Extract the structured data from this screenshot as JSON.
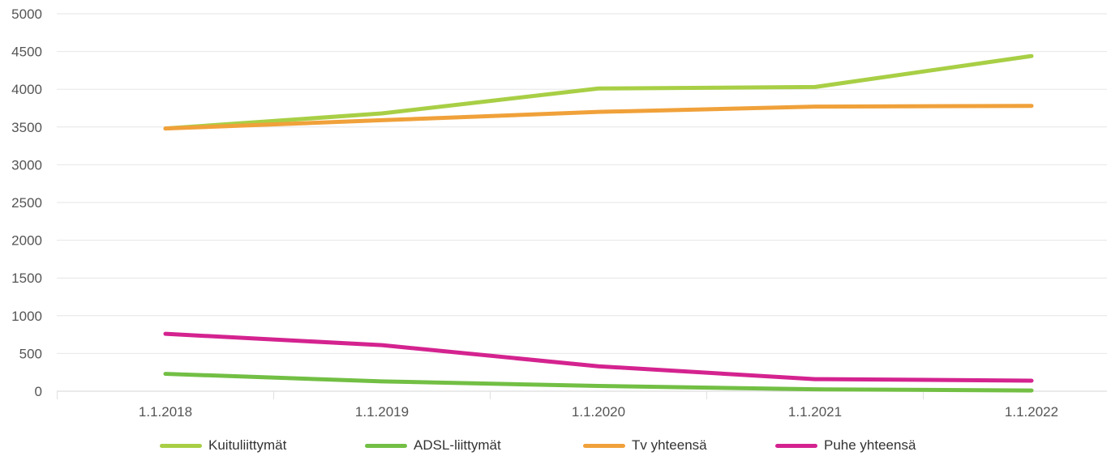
{
  "chart_data": {
    "type": "line",
    "categories": [
      "1.1.2018",
      "1.1.2019",
      "1.1.2020",
      "1.1.2021",
      "1.1.2022"
    ],
    "ylim": [
      0,
      5000
    ],
    "yticks": [
      "0",
      "500",
      "1000",
      "1500",
      "2000",
      "2500",
      "3000",
      "3500",
      "4000",
      "4500",
      "5000"
    ],
    "grid": true,
    "legend_position": "bottom",
    "series": [
      {
        "name": "Kuituliittymät",
        "color": "#a8cf45",
        "values": [
          3480,
          3680,
          4010,
          4030,
          4440
        ]
      },
      {
        "name": "ADSL-liittymät",
        "color": "#72bf44",
        "values": [
          230,
          130,
          70,
          25,
          10
        ]
      },
      {
        "name": "Tv yhteensä",
        "color": "#f0a13a",
        "values": [
          3480,
          3590,
          3700,
          3770,
          3780
        ]
      },
      {
        "name": "Puhe yhteensä",
        "color": "#d4238f",
        "values": [
          760,
          610,
          330,
          160,
          140
        ]
      }
    ]
  }
}
